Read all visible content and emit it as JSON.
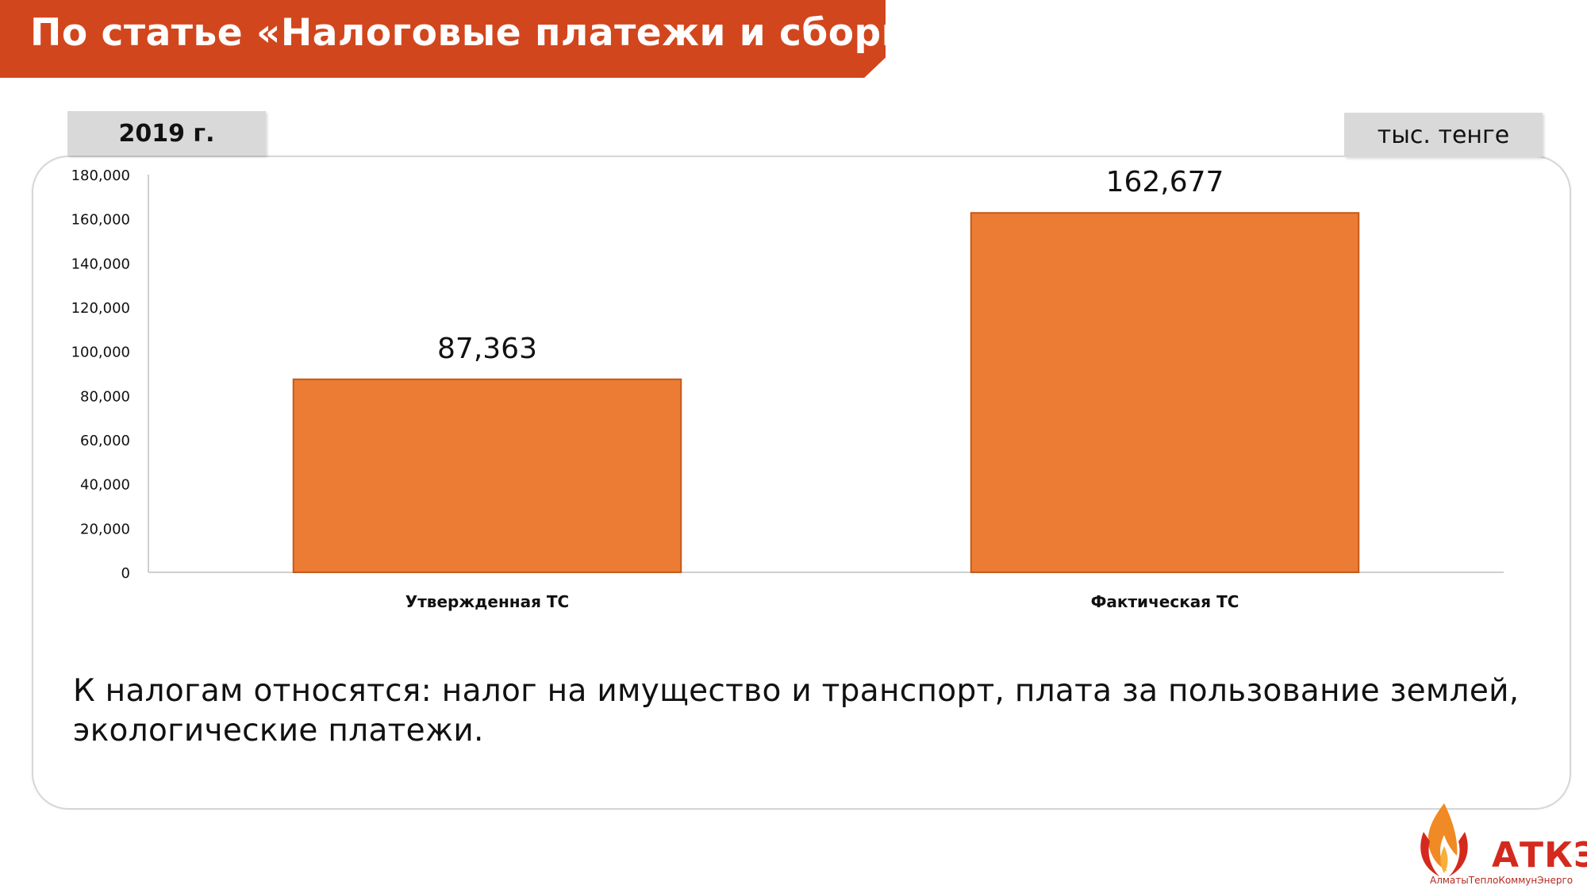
{
  "header": {
    "title": "По статье «Налоговые платежи и сборы»",
    "year_tab": "2019 г.",
    "unit_tab": "тыс. тенге"
  },
  "chart_data": {
    "type": "bar",
    "categories": [
      "Утвержденная ТС",
      "Фактическая ТС"
    ],
    "values": [
      87363,
      162677
    ],
    "data_labels": [
      "87,363",
      "162,677"
    ],
    "yticks": [
      "0",
      "20,000",
      "40,000",
      "60,000",
      "80,000",
      "100,000",
      "120,000",
      "140,000",
      "160,000",
      "180,000"
    ],
    "ylim": [
      0,
      180000
    ],
    "grid": false,
    "bar_color": "#ec7b33",
    "bar_edge_color": "#c45a1a"
  },
  "note": "К налогам относятся: налог на имущество и транспорт, плата за пользование землей, экологические платежи.",
  "logo": {
    "text": "АТКЭ",
    "subtitle": "АлматыТеплоКоммунЭнерго"
  },
  "colors": {
    "accent": "#d2461e",
    "tab_bg": "#d9d9d9",
    "logo_red": "#d42a1e",
    "logo_orange": "#f08a24"
  }
}
